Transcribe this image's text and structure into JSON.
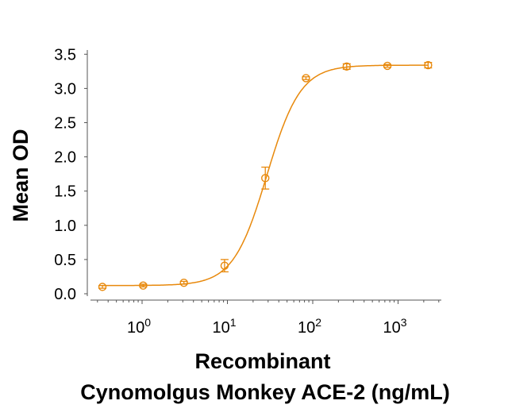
{
  "chart_data": {
    "type": "scatter",
    "title": "",
    "ylabel": "Mean OD",
    "xlabel_lines": [
      "Recombinant",
      "Cynomolgus Monkey ACE-2 (ng/mL)"
    ],
    "x_scale": "log",
    "xlim": [
      0.23,
      3300
    ],
    "ylim": [
      0,
      3.5
    ],
    "y_ticks": [
      "0.0",
      "0.5",
      "1.0",
      "1.5",
      "2.0",
      "2.5",
      "3.0",
      "3.5"
    ],
    "x_ticks": [
      {
        "base": "10",
        "exp": "0",
        "value": 1
      },
      {
        "base": "10",
        "exp": "1",
        "value": 10
      },
      {
        "base": "10",
        "exp": "2",
        "value": 100
      },
      {
        "base": "10",
        "exp": "3",
        "value": 1000
      }
    ],
    "grid": false,
    "color": "#E8890C",
    "series": [
      {
        "x": [
          0.343,
          1.03,
          3.09,
          9.26,
          27.8,
          83.3,
          250,
          750,
          2250
        ],
        "y": [
          0.1,
          0.12,
          0.16,
          0.41,
          1.69,
          3.15,
          3.32,
          3.33,
          3.34
        ],
        "error": [
          0.02,
          0.02,
          0.02,
          0.09,
          0.16,
          0.02,
          0.04,
          0.02,
          0.04
        ]
      }
    ],
    "fit": {
      "model": "4PL",
      "bottom": 0.12,
      "top": 3.34,
      "ec50": 29,
      "hill": 2.2
    }
  }
}
